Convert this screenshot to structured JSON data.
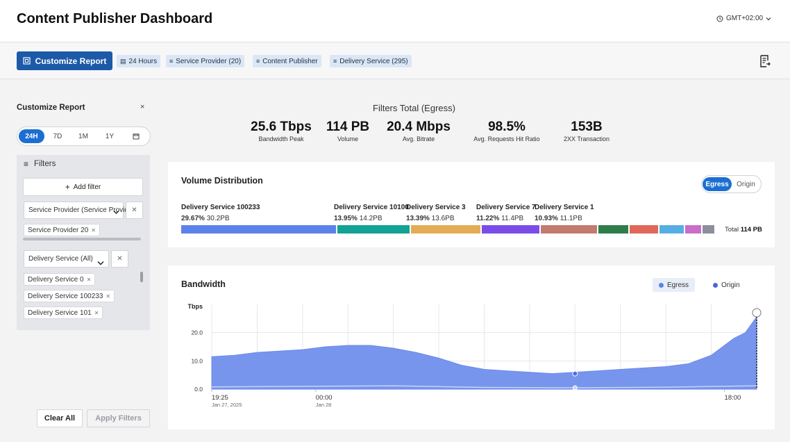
{
  "header": {
    "title": "Content Publisher Dashboard",
    "timezone": "GMT+02:00"
  },
  "toolbar": {
    "customize_label": "Customize Report",
    "chips": [
      "24 Hours",
      "Service Provider (20)",
      "Content Publisher",
      "Delivery Service (295)"
    ]
  },
  "sidebar": {
    "title": "Customize Report",
    "close": "×",
    "ranges": [
      "24H",
      "7D",
      "1M",
      "1Y"
    ],
    "filters_label": "Filters",
    "add_filter_label": "Add filter",
    "provider_select": "Service Provider (Service Provid",
    "provider_tags": [
      "Service Provider 20"
    ],
    "ds_select": "Delivery Service (All)",
    "ds_tags": [
      "Delivery Service 0",
      "Delivery Service 100233",
      "Delivery Service 101"
    ],
    "clear_label": "Clear All",
    "apply_label": "Apply Filters"
  },
  "kpis": {
    "title": "Filters Total (Egress)",
    "items": [
      {
        "value": "25.6 Tbps",
        "label": "Bandwidth Peak"
      },
      {
        "value": "114 PB",
        "label": "Volume"
      },
      {
        "value": "20.4 Mbps",
        "label": "Avg. Bitrate"
      },
      {
        "value": "98.5%",
        "label": "Avg. Requests Hit Ratio"
      },
      {
        "value": "153B",
        "label": "2XX Transaction"
      }
    ]
  },
  "volume": {
    "title": "Volume Distribution",
    "toggle": [
      "Egress",
      "Origin"
    ],
    "segments": [
      {
        "name": "Delivery Service 100233",
        "pct": "29.67%",
        "size": "30.2PB",
        "share": 29.67,
        "color": "#5b82ea"
      },
      {
        "name": "Delivery Service 10100",
        "pct": "13.95%",
        "size": "14.2PB",
        "share": 13.95,
        "color": "#12a296"
      },
      {
        "name": "Delivery Service 3",
        "pct": "13.39%",
        "size": "13.6PB",
        "share": 13.39,
        "color": "#e3ad55"
      },
      {
        "name": "Delivery Service 7",
        "pct": "11.22%",
        "size": "11.4PB",
        "share": 11.22,
        "color": "#7a4de8"
      },
      {
        "name": "Delivery Service 1",
        "pct": "10.93%",
        "size": "11.1PB",
        "share": 10.93,
        "color": "#c47a6e"
      },
      {
        "share": 5.9,
        "color": "#2f7d4a"
      },
      {
        "share": 5.6,
        "color": "#e0685a"
      },
      {
        "share": 4.9,
        "color": "#56aee3"
      },
      {
        "share": 3.3,
        "color": "#c86ec9"
      },
      {
        "share": 2.5,
        "color": "#8c8f9b"
      }
    ],
    "total_label": "Total",
    "total_value": "114 PB"
  },
  "bandwidth": {
    "title": "Bandwidth",
    "legend": [
      "Egress",
      "Origin"
    ],
    "colors": {
      "egress": "#7895ee",
      "origin": "#6d7fe0"
    }
  },
  "chart_data": {
    "type": "area",
    "title": "Bandwidth",
    "ylabel": "Tbps",
    "ylim": [
      0,
      30
    ],
    "yticks": [
      "0.0",
      "10.0",
      "20.0"
    ],
    "ytick_values": [
      0,
      10,
      20
    ],
    "x_ticks": [
      {
        "time": "19:25",
        "date": "Jan 27, 2025",
        "hour": 0
      },
      {
        "time": "00:00",
        "date": "Jan 28",
        "hour": 4.58
      },
      {
        "time": "18:00",
        "date": "",
        "hour": 22.58
      }
    ],
    "x_range_hours": [
      0,
      24
    ],
    "series": [
      {
        "name": "Egress",
        "x_hours": [
          0,
          1,
          2,
          3,
          4,
          5,
          6,
          7,
          8,
          9,
          10,
          11,
          12,
          13,
          14,
          15,
          16,
          17,
          18,
          19,
          20,
          21,
          22,
          23,
          23.5,
          24
        ],
        "values": [
          11.5,
          12,
          13,
          13.5,
          14,
          15,
          15.5,
          15.5,
          14.5,
          13,
          11,
          8.5,
          7,
          6.5,
          6,
          5.5,
          6,
          6.5,
          7,
          7.5,
          8,
          9,
          12,
          18,
          20,
          25.6
        ]
      },
      {
        "name": "Origin",
        "x_hours": [
          0,
          4,
          8,
          12,
          16,
          20,
          24
        ],
        "values": [
          0.8,
          1.0,
          1.2,
          0.6,
          0.5,
          0.7,
          1.2
        ]
      }
    ]
  }
}
